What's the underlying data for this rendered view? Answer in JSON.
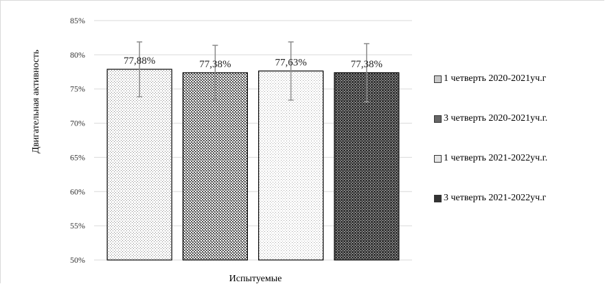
{
  "chart_data": {
    "type": "bar",
    "title": "",
    "xlabel": "Испытуемые",
    "ylabel": "Двигательная активность",
    "ylim": [
      50,
      85
    ],
    "yticks": [
      "50%",
      "55%",
      "60%",
      "65%",
      "70%",
      "75%",
      "80%",
      "85%"
    ],
    "ytick_values": [
      50,
      55,
      60,
      65,
      70,
      75,
      80,
      85
    ],
    "grid": true,
    "legend_position": "right",
    "series": [
      {
        "name": "1 четверть 2020-2021уч.г",
        "value": 77.88,
        "label": "77,88%",
        "error": 4.0,
        "pattern": "dots-light",
        "color": "#9a9a9a"
      },
      {
        "name": "3 четверть 2020-2021уч.г.",
        "value": 77.38,
        "label": "77,38%",
        "error": 4.0,
        "pattern": "checker-medium",
        "color": "#555555"
      },
      {
        "name": "1 четверть 2021-2022уч.г.",
        "value": 77.63,
        "label": "77,63%",
        "error": 4.25,
        "pattern": "dots-sparse",
        "color": "#bdbdbd"
      },
      {
        "name": "3 четверть 2021-2022уч.г",
        "value": 77.38,
        "label": "77,38%",
        "error": 4.25,
        "pattern": "checker-dark",
        "color": "#222222"
      }
    ]
  }
}
